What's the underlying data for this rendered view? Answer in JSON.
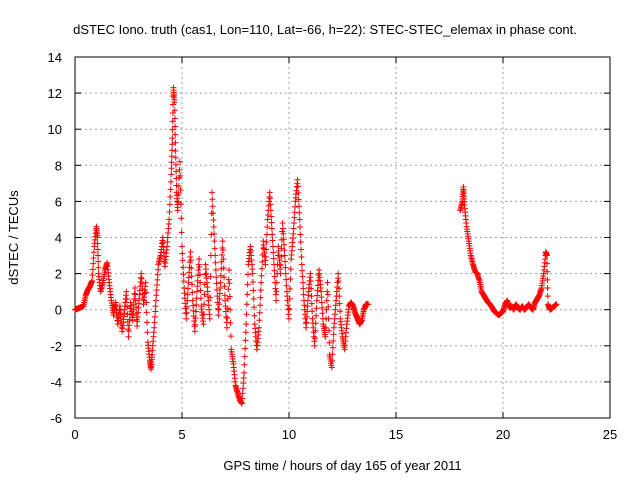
{
  "chart_data": {
    "type": "scatter",
    "title": "dSTEC Iono. truth (cas1, Lon=110, Lat=-66, h=22): STEC-STEC_elemax in phase cont.",
    "xlabel": "GPS time / hours of day 165 of year 2011",
    "ylabel": "dSTEC  / TECUs",
    "xlim": [
      0,
      25
    ],
    "ylim": [
      -6,
      14
    ],
    "xticks": [
      0,
      5,
      10,
      15,
      20,
      25
    ],
    "yticks": [
      -6,
      -4,
      -2,
      0,
      2,
      4,
      6,
      8,
      10,
      12,
      14
    ],
    "grid": true,
    "marker": "plus",
    "color": "#ff0000",
    "series": [
      {
        "name": "dSTEC",
        "points": [
          [
            0.0,
            0.0
          ],
          [
            0.1,
            0.05
          ],
          [
            0.2,
            0.1
          ],
          [
            0.3,
            0.15
          ],
          [
            0.4,
            0.2
          ],
          [
            0.5,
            0.8
          ],
          [
            0.6,
            1.1
          ],
          [
            0.7,
            1.3
          ],
          [
            0.8,
            1.6
          ],
          [
            0.9,
            3.5
          ],
          [
            1.0,
            4.6
          ],
          [
            1.05,
            4.0
          ],
          [
            1.1,
            2.0
          ],
          [
            1.2,
            1.0
          ],
          [
            1.3,
            1.5
          ],
          [
            1.4,
            2.2
          ],
          [
            1.5,
            2.6
          ],
          [
            1.6,
            1.5
          ],
          [
            1.7,
            0.5
          ],
          [
            1.8,
            -0.3
          ],
          [
            1.9,
            0.4
          ],
          [
            2.0,
            -0.8
          ],
          [
            2.1,
            0.2
          ],
          [
            2.2,
            -1.2
          ],
          [
            2.3,
            -0.2
          ],
          [
            2.4,
            1.0
          ],
          [
            2.5,
            -1.5
          ],
          [
            2.6,
            0.4
          ],
          [
            2.7,
            -0.6
          ],
          [
            2.8,
            1.2
          ],
          [
            2.9,
            -0.9
          ],
          [
            3.0,
            0.6
          ],
          [
            3.1,
            2.0
          ],
          [
            3.2,
            0.3
          ],
          [
            3.3,
            1.5
          ],
          [
            3.4,
            -1.8
          ],
          [
            3.5,
            -2.8
          ],
          [
            3.55,
            -3.3
          ],
          [
            3.6,
            -2.5
          ],
          [
            3.7,
            -1.0
          ],
          [
            3.8,
            0.8
          ],
          [
            3.9,
            2.5
          ],
          [
            4.0,
            3.0
          ],
          [
            4.1,
            4.0
          ],
          [
            4.2,
            2.4
          ],
          [
            4.3,
            3.5
          ],
          [
            4.4,
            5.0
          ],
          [
            4.5,
            7.5
          ],
          [
            4.55,
            9.5
          ],
          [
            4.6,
            12.3
          ],
          [
            4.65,
            11.5
          ],
          [
            4.7,
            8.8
          ],
          [
            4.75,
            6.5
          ],
          [
            4.8,
            5.5
          ],
          [
            4.9,
            8.2
          ],
          [
            5.0,
            3.5
          ],
          [
            5.1,
            1.2
          ],
          [
            5.2,
            -0.5
          ],
          [
            5.3,
            1.5
          ],
          [
            5.4,
            3.2
          ],
          [
            5.5,
            0.5
          ],
          [
            5.6,
            -1.2
          ],
          [
            5.7,
            1.0
          ],
          [
            5.8,
            2.8
          ],
          [
            5.9,
            0.2
          ],
          [
            6.0,
            -0.8
          ],
          [
            6.1,
            2.5
          ],
          [
            6.2,
            1.0
          ],
          [
            6.3,
            -0.5
          ],
          [
            6.4,
            6.5
          ],
          [
            6.5,
            4.2
          ],
          [
            6.6,
            1.8
          ],
          [
            6.7,
            -0.3
          ],
          [
            6.8,
            1.5
          ],
          [
            6.9,
            3.8
          ],
          [
            7.0,
            0.8
          ],
          [
            7.1,
            -1.0
          ],
          [
            7.2,
            2.2
          ],
          [
            7.3,
            -2.2
          ],
          [
            7.4,
            -3.0
          ],
          [
            7.5,
            -4.2
          ],
          [
            7.6,
            -4.6
          ],
          [
            7.7,
            -5.0
          ],
          [
            7.8,
            -5.2
          ],
          [
            7.9,
            -3.5
          ],
          [
            8.0,
            -0.8
          ],
          [
            8.1,
            2.5
          ],
          [
            8.2,
            3.5
          ],
          [
            8.3,
            2.0
          ],
          [
            8.4,
            -0.8
          ],
          [
            8.5,
            -2.2
          ],
          [
            8.6,
            -1.0
          ],
          [
            8.7,
            1.5
          ],
          [
            8.8,
            3.8
          ],
          [
            8.9,
            2.5
          ],
          [
            9.0,
            5.0
          ],
          [
            9.1,
            6.5
          ],
          [
            9.2,
            4.5
          ],
          [
            9.3,
            2.5
          ],
          [
            9.4,
            0.5
          ],
          [
            9.5,
            3.5
          ],
          [
            9.6,
            2.0
          ],
          [
            9.7,
            4.8
          ],
          [
            9.8,
            3.0
          ],
          [
            9.9,
            1.0
          ],
          [
            10.0,
            -0.5
          ],
          [
            10.1,
            2.8
          ],
          [
            10.2,
            4.2
          ],
          [
            10.3,
            6.0
          ],
          [
            10.4,
            7.2
          ],
          [
            10.5,
            5.0
          ],
          [
            10.6,
            2.5
          ],
          [
            10.7,
            0.5
          ],
          [
            10.8,
            -1.0
          ],
          [
            10.9,
            0.8
          ],
          [
            11.0,
            2.0
          ],
          [
            11.1,
            -0.5
          ],
          [
            11.2,
            -2.0
          ],
          [
            11.3,
            0.5
          ],
          [
            11.4,
            2.2
          ],
          [
            11.5,
            1.0
          ],
          [
            11.6,
            -0.8
          ],
          [
            11.7,
            -1.5
          ],
          [
            11.8,
            1.5
          ],
          [
            11.9,
            -2.5
          ],
          [
            12.0,
            -3.2
          ],
          [
            12.1,
            -1.0
          ],
          [
            12.2,
            0.5
          ],
          [
            12.3,
            2.0
          ],
          [
            12.4,
            -0.5
          ],
          [
            12.5,
            -1.5
          ],
          [
            12.6,
            -2.2
          ],
          [
            12.7,
            -0.8
          ],
          [
            12.8,
            0.2
          ],
          [
            12.9,
            0.4
          ],
          [
            13.0,
            0.2
          ],
          [
            13.1,
            -0.2
          ],
          [
            13.2,
            -0.5
          ],
          [
            13.3,
            -0.8
          ],
          [
            13.4,
            -0.6
          ],
          [
            13.5,
            0.0
          ],
          [
            13.6,
            0.3
          ],
          [
            13.7,
            0.3
          ],
          [
            18.0,
            5.5
          ],
          [
            18.1,
            6.0
          ],
          [
            18.15,
            6.8
          ],
          [
            18.2,
            5.8
          ],
          [
            18.3,
            4.6
          ],
          [
            18.4,
            3.8
          ],
          [
            18.5,
            3.0
          ],
          [
            18.6,
            2.5
          ],
          [
            18.7,
            2.1
          ],
          [
            18.8,
            2.0
          ],
          [
            18.9,
            1.6
          ],
          [
            19.0,
            1.0
          ],
          [
            19.1,
            0.8
          ],
          [
            19.2,
            0.6
          ],
          [
            19.3,
            0.4
          ],
          [
            19.4,
            0.3
          ],
          [
            19.5,
            0.1
          ],
          [
            19.6,
            -0.1
          ],
          [
            19.7,
            -0.2
          ],
          [
            19.8,
            -0.3
          ],
          [
            19.9,
            -0.2
          ],
          [
            20.0,
            -0.1
          ],
          [
            20.1,
            0.3
          ],
          [
            20.2,
            0.5
          ],
          [
            20.3,
            0.1
          ],
          [
            20.4,
            0.2
          ],
          [
            20.5,
            0.0
          ],
          [
            20.6,
            0.3
          ],
          [
            20.7,
            0.1
          ],
          [
            20.8,
            0.0
          ],
          [
            20.9,
            0.2
          ],
          [
            21.0,
            0.0
          ],
          [
            21.1,
            0.1
          ],
          [
            21.2,
            0.3
          ],
          [
            21.3,
            0.1
          ],
          [
            21.4,
            0.0
          ],
          [
            21.5,
            0.4
          ],
          [
            21.6,
            0.6
          ],
          [
            21.7,
            0.8
          ],
          [
            21.8,
            1.2
          ],
          [
            21.9,
            2.0
          ],
          [
            22.0,
            3.2
          ],
          [
            22.05,
            3.0
          ],
          [
            22.1,
            0.3
          ],
          [
            22.2,
            0.0
          ],
          [
            22.3,
            0.1
          ],
          [
            22.4,
            0.2
          ],
          [
            22.5,
            0.3
          ]
        ]
      }
    ]
  }
}
